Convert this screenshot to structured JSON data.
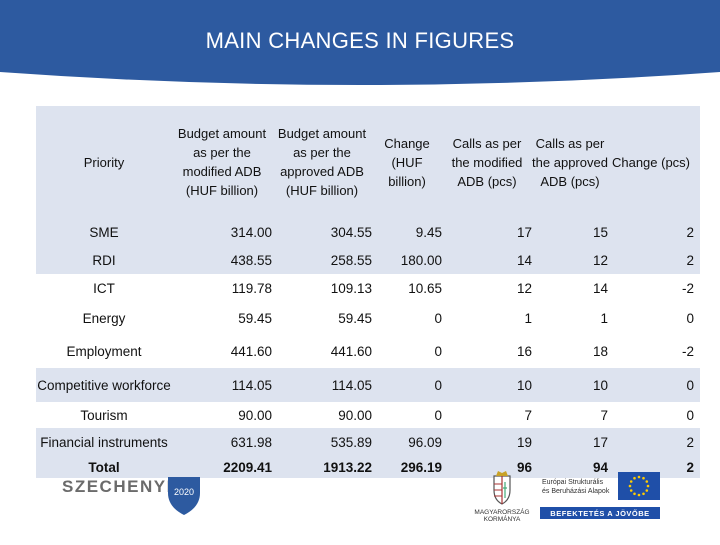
{
  "header": {
    "title": "MAIN CHANGES IN FIGURES"
  },
  "colors": {
    "header_blue": "#2d5aa0",
    "row_shade": "#dde3ef",
    "eu_blue": "#1f4fa8"
  },
  "table": {
    "columns": [
      "Priority",
      "Budget amount as per the modified ADB (HUF billion)",
      "Budget amount as per the approved ADB (HUF billion)",
      "Change (HUF billion)",
      "Calls as per the modified ADB (pcs)",
      "Calls as per the approved ADB (pcs)",
      "Change (pcs)"
    ],
    "rows": [
      [
        "SME",
        "314.00",
        "304.55",
        "9.45",
        "17",
        "15",
        "2"
      ],
      [
        "RDI",
        "438.55",
        "258.55",
        "180.00",
        "14",
        "12",
        "2"
      ],
      [
        "ICT",
        "119.78",
        "109.13",
        "10.65",
        "12",
        "14",
        "-2"
      ],
      [
        "Energy",
        "59.45",
        "59.45",
        "0",
        "1",
        "1",
        "0"
      ],
      [
        "Employment",
        "441.60",
        "441.60",
        "0",
        "16",
        "18",
        "-2"
      ],
      [
        "Competitive workforce",
        "114.05",
        "114.05",
        "0",
        "10",
        "10",
        "0"
      ],
      [
        "Tourism",
        "90.00",
        "90.00",
        "0",
        "7",
        "7",
        "0"
      ],
      [
        "Financial instruments",
        "631.98",
        "535.89",
        "96.09",
        "19",
        "17",
        "2"
      ],
      [
        "Total",
        "2209.41",
        "1913.22",
        "296.19",
        "96",
        "94",
        "2"
      ]
    ]
  },
  "footer": {
    "szechenyi_text": "SZECHENYI",
    "szechenyi_year": "2020",
    "gov_line1": "MAGYARORSZÁG",
    "gov_line2": "KORMÁNYA",
    "eu_line1": "Európai Strukturális",
    "eu_line2": "és Beruházási Alapok",
    "eu_slogan": "BEFEKTETÉS A JÖVŐBE"
  }
}
